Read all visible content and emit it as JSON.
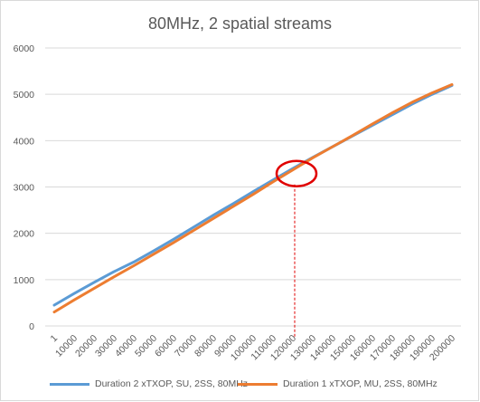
{
  "chart_data": {
    "type": "line",
    "title": "80MHz, 2 spatial streams",
    "xlabel": "",
    "ylabel": "",
    "ylim": [
      0,
      6000
    ],
    "yticks": [
      0,
      1000,
      2000,
      3000,
      4000,
      5000,
      6000
    ],
    "x_tick_labels": [
      "1",
      "10000",
      "20000",
      "30000",
      "40000",
      "50000",
      "60000",
      "70000",
      "80000",
      "90000",
      "100000",
      "110000",
      "120000",
      "130000",
      "140000",
      "150000",
      "160000",
      "170000",
      "180000",
      "190000",
      "200000"
    ],
    "x": [
      1,
      10000,
      20000,
      30000,
      40000,
      50000,
      60000,
      70000,
      80000,
      90000,
      100000,
      110000,
      120000,
      130000,
      140000,
      150000,
      160000,
      170000,
      180000,
      190000,
      200000
    ],
    "grid": true,
    "legend_position": "bottom",
    "series": [
      {
        "name": "Duration 2 xTXOP, SU, 2SS, 80MHz",
        "color": "#5b9bd5",
        "values": [
          450,
          700,
          940,
          1170,
          1380,
          1620,
          1870,
          2130,
          2390,
          2640,
          2900,
          3150,
          3400,
          3640,
          3870,
          4100,
          4330,
          4560,
          4790,
          5000,
          5190
        ]
      },
      {
        "name": "Duration 1 xTXOP, MU, 2SS, 80MHz",
        "color": "#ed7d31",
        "values": [
          300,
          560,
          810,
          1060,
          1300,
          1550,
          1800,
          2060,
          2320,
          2580,
          2840,
          3110,
          3370,
          3630,
          3870,
          4110,
          4360,
          4600,
          4830,
          5030,
          5210
        ]
      }
    ],
    "annotations": {
      "highlight_circle_x": 120000,
      "highlight_circle_y": 3250,
      "highlight_color": "#e00000"
    }
  }
}
